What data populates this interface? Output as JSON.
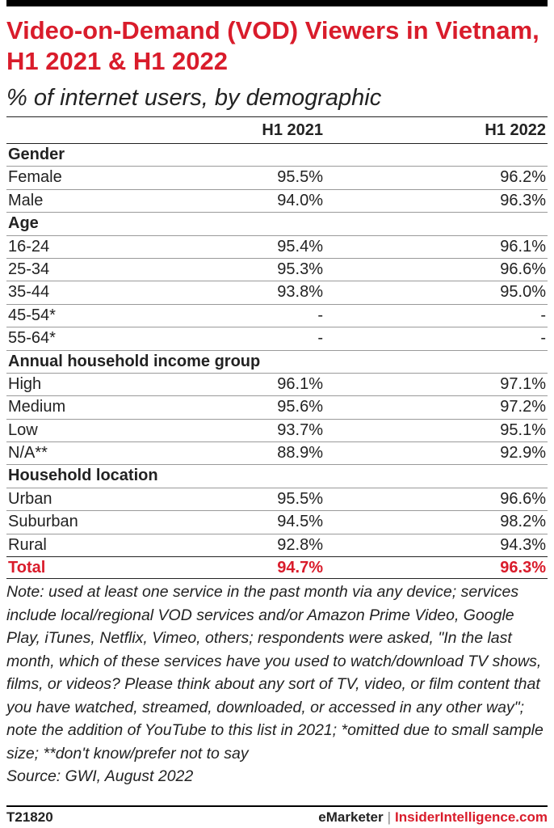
{
  "title": "Video-on-Demand (VOD) Viewers in Vietnam, H1 2021 & H1 2022",
  "subtitle": "% of internet users, by demographic",
  "columns": [
    "H1 2021",
    "H1 2022"
  ],
  "chart_data": {
    "type": "table",
    "columns": [
      "H1 2021",
      "H1 2022"
    ],
    "rows": [
      {
        "label": "Gender",
        "group": true
      },
      {
        "label": "Female",
        "values": [
          "95.5%",
          "96.2%"
        ]
      },
      {
        "label": "Male",
        "values": [
          "94.0%",
          "96.3%"
        ]
      },
      {
        "label": "Age",
        "group": true
      },
      {
        "label": "16-24",
        "values": [
          "95.4%",
          "96.1%"
        ]
      },
      {
        "label": "25-34",
        "values": [
          "95.3%",
          "96.6%"
        ]
      },
      {
        "label": "35-44",
        "values": [
          "93.8%",
          "95.0%"
        ]
      },
      {
        "label": "45-54*",
        "values": [
          "-",
          "-"
        ]
      },
      {
        "label": "55-64*",
        "values": [
          "-",
          "-"
        ]
      },
      {
        "label": "Annual household income group",
        "group": true
      },
      {
        "label": "High",
        "values": [
          "96.1%",
          "97.1%"
        ]
      },
      {
        "label": "Medium",
        "values": [
          "95.6%",
          "97.2%"
        ]
      },
      {
        "label": "Low",
        "values": [
          "93.7%",
          "95.1%"
        ]
      },
      {
        "label": "N/A**",
        "values": [
          "88.9%",
          "92.9%"
        ]
      },
      {
        "label": "Household location",
        "group": true
      },
      {
        "label": "Urban",
        "values": [
          "95.5%",
          "96.6%"
        ]
      },
      {
        "label": "Suburban",
        "values": [
          "94.5%",
          "98.2%"
        ]
      },
      {
        "label": "Rural",
        "values": [
          "92.8%",
          "94.3%"
        ]
      },
      {
        "label": "Total",
        "values": [
          "94.7%",
          "96.3%"
        ],
        "total": true
      }
    ]
  },
  "note": "Note: used at least one service in the past month via any device; services include local/regional VOD services and/or Amazon Prime Video, Google Play, iTunes, Netflix, Vimeo, others; respondents were asked, \"In the last month, which of these services have you used to watch/download TV shows, films, or videos? Please think about any sort of TV, video, or film content that you have watched, streamed, downloaded, or accessed in any other way\"; note the addition of YouTube to this list in 2021; *omitted due to small sample size; **don't know/prefer not to say",
  "source": "Source: GWI, August 2022",
  "footer": {
    "id": "T21820",
    "brand_emarketer": "eMarketer",
    "separator": "|",
    "brand_ii": "InsiderIntelligence.com"
  },
  "colors": {
    "accent": "#d91c2b",
    "text": "#222222"
  }
}
